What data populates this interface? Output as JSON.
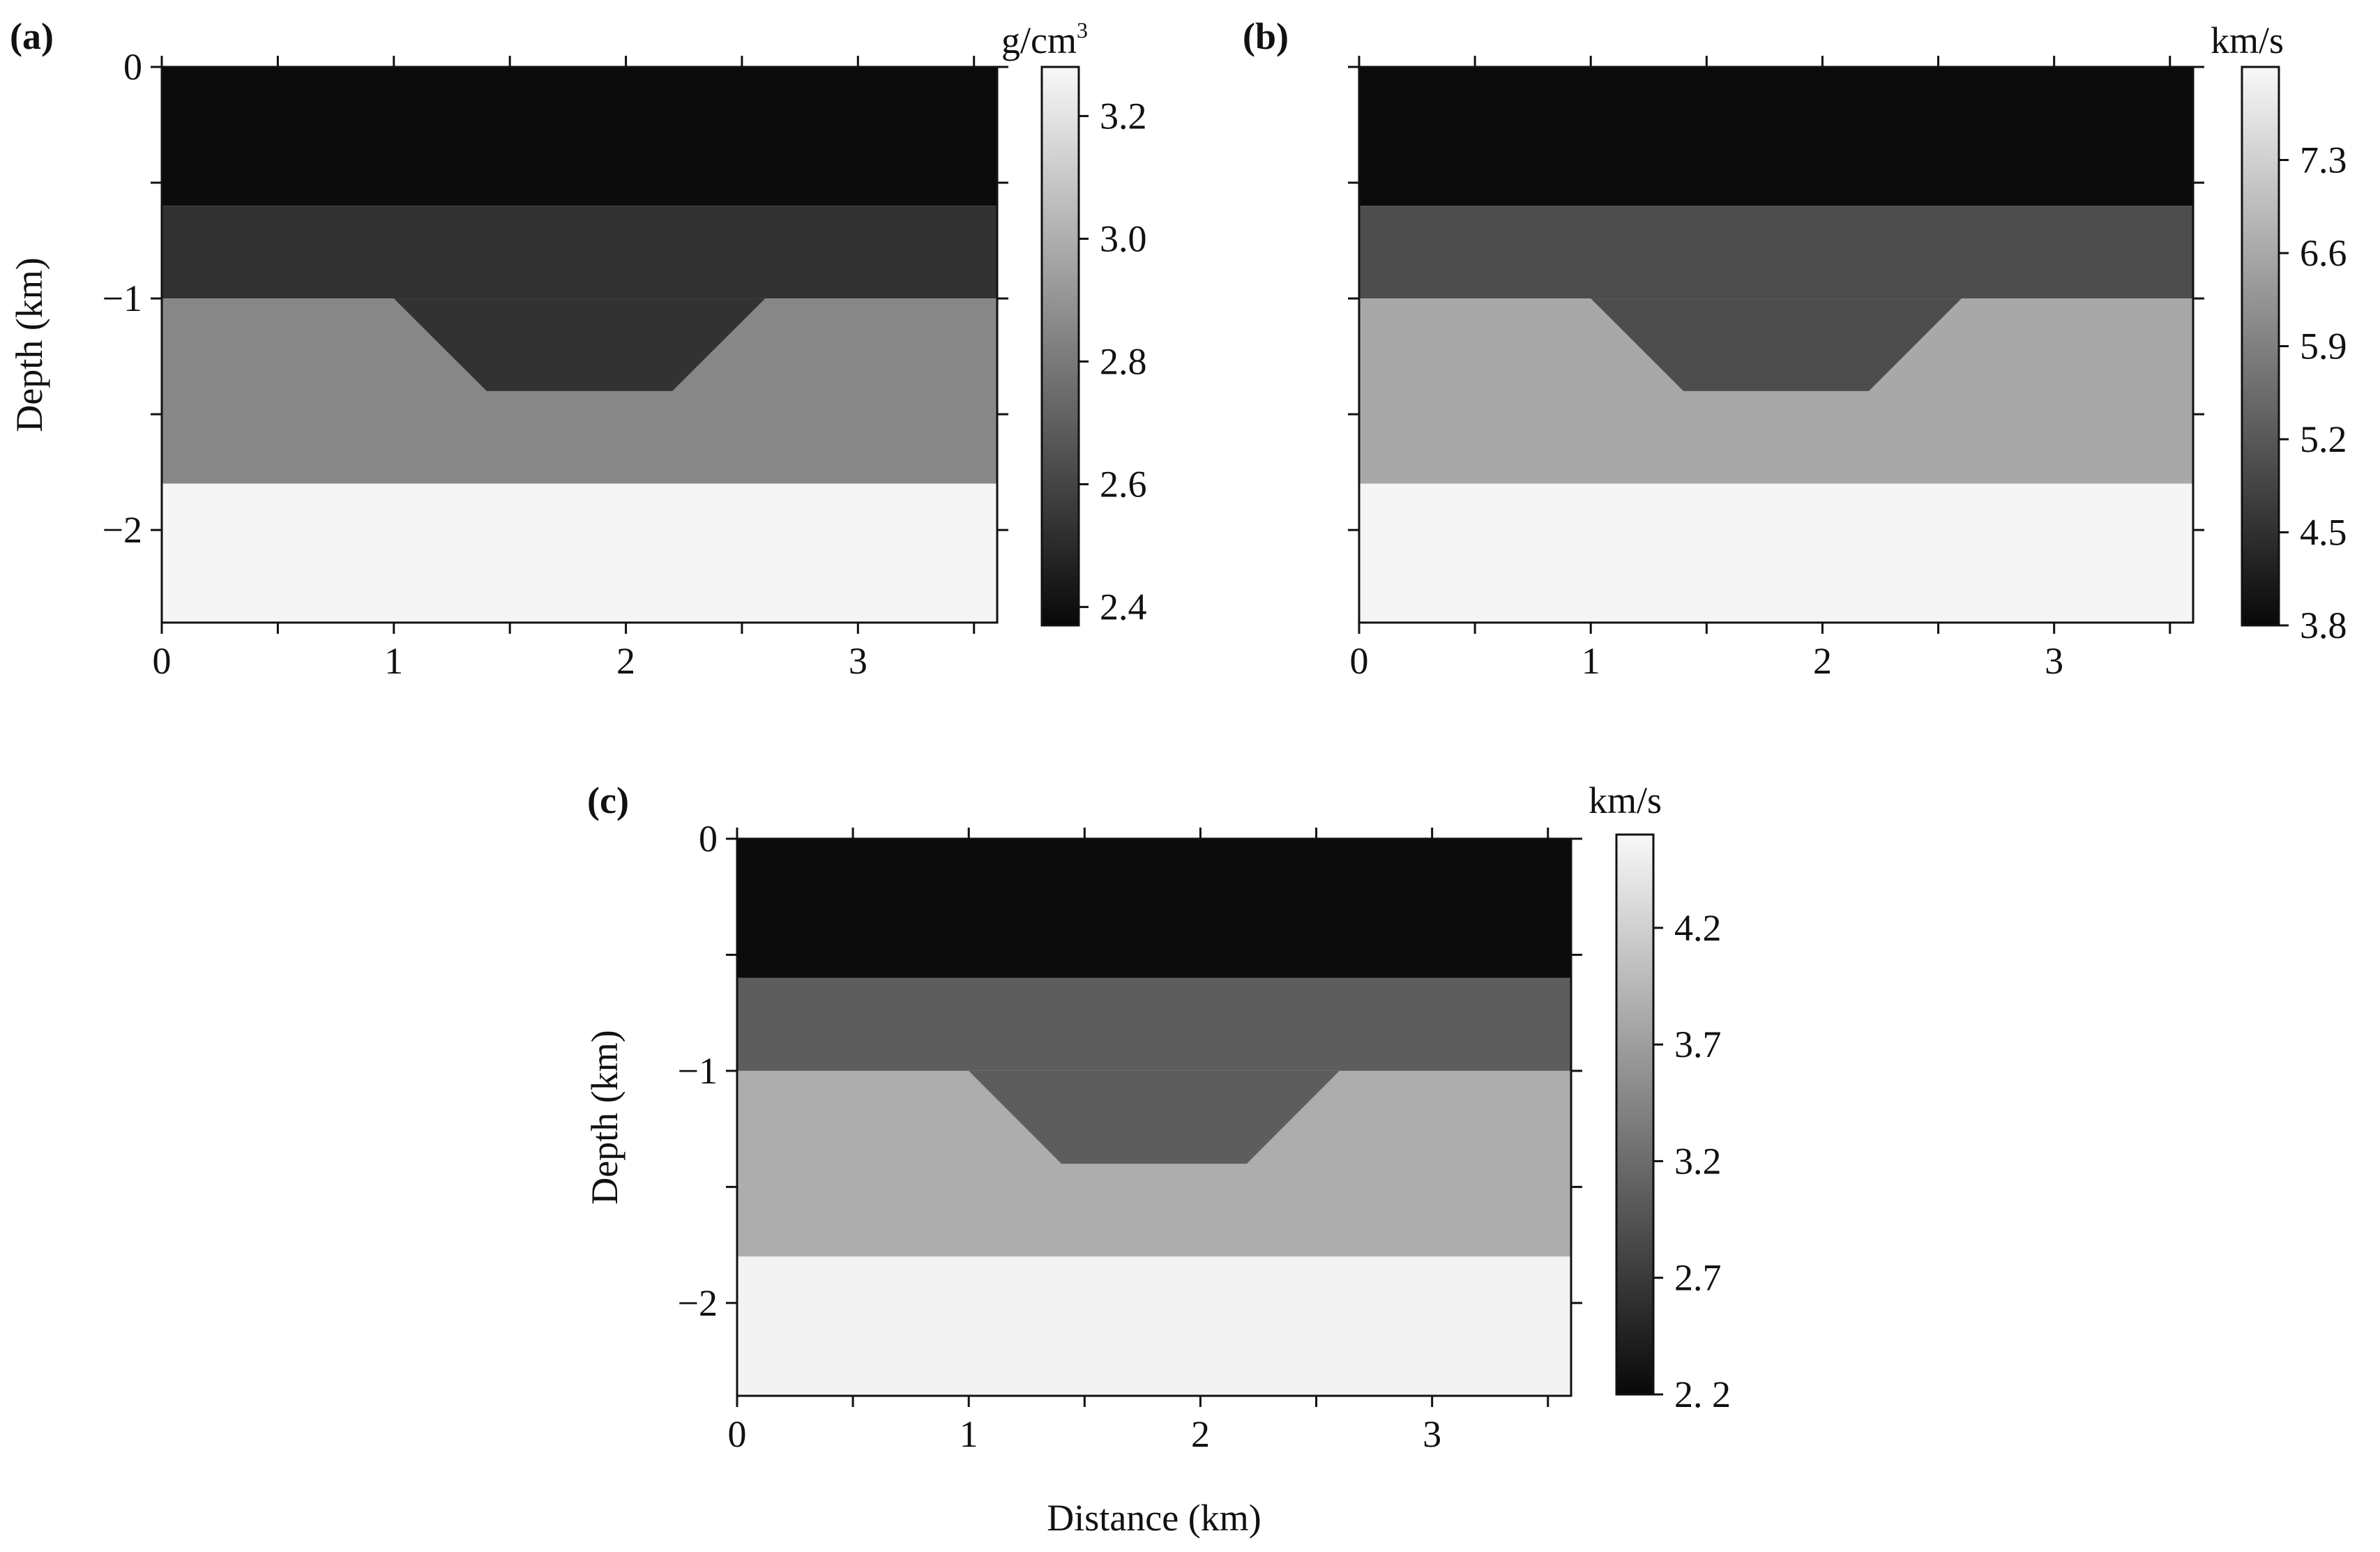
{
  "figure": {
    "panels": [
      "a",
      "b",
      "c"
    ]
  },
  "chart_data": [
    {
      "type": "heatmap",
      "panel_label": "(a)",
      "colorbar_unit": "g/cm",
      "colorbar_unit_superscript": "3",
      "ylabel": "Depth (km)",
      "xlabel": "",
      "xlim": [
        0,
        3.6
      ],
      "ylim": [
        -2.4,
        0
      ],
      "xticks": [
        0,
        1,
        2,
        3
      ],
      "xtick_labels": [
        "0",
        "1",
        "2",
        "3"
      ],
      "yticks": [
        0,
        -1,
        -2
      ],
      "ytick_labels": [
        "0",
        "−1",
        "−2"
      ],
      "colorbar_range": [
        2.37,
        3.28
      ],
      "colorbar_ticks": [
        2.4,
        2.6,
        2.8,
        3.0,
        3.2
      ],
      "colorbar_tick_labels": [
        "2.4",
        "2.6",
        "2.8",
        "3.0",
        "3.2"
      ],
      "layers": [
        {
          "name": "top layer",
          "top": 0,
          "bottom": -0.6,
          "value": 2.38
        },
        {
          "name": "second layer",
          "top": -0.6,
          "bottom": -1.0,
          "value": 2.53
        },
        {
          "name": "third layer",
          "top": -1.0,
          "bottom": -1.8,
          "value": 2.85
        },
        {
          "name": "bottom layer",
          "top": -1.8,
          "bottom": -2.4,
          "value": 3.27
        }
      ],
      "trough": {
        "top_x": [
          1.0,
          2.6
        ],
        "bottom_x": [
          1.4,
          2.2
        ],
        "top_y": -1.0,
        "bottom_y": -1.4,
        "value": 2.53
      }
    },
    {
      "type": "heatmap",
      "panel_label": "(b)",
      "colorbar_unit": "km/s",
      "colorbar_unit_superscript": "",
      "ylabel": "",
      "xlabel": "",
      "xlim": [
        0,
        3.6
      ],
      "ylim": [
        -2.4,
        0
      ],
      "xticks": [
        0,
        1,
        2,
        3
      ],
      "xtick_labels": [
        "0",
        "1",
        "2",
        "3"
      ],
      "yticks": [
        0,
        -1,
        -2
      ],
      "ytick_labels": [
        "",
        "",
        ""
      ],
      "colorbar_range": [
        3.8,
        8.0
      ],
      "colorbar_ticks": [
        3.8,
        4.5,
        5.2,
        5.9,
        6.6,
        7.3
      ],
      "colorbar_tick_labels": [
        "3.8",
        "4.5",
        "5.2",
        "5.9",
        "6.6",
        "7.3"
      ],
      "layers": [
        {
          "name": "top layer",
          "top": 0,
          "bottom": -0.6,
          "value": 3.85
        },
        {
          "name": "second layer",
          "top": -0.6,
          "bottom": -1.0,
          "value": 5.0
        },
        {
          "name": "third layer",
          "top": -1.0,
          "bottom": -1.8,
          "value": 6.6
        },
        {
          "name": "bottom layer",
          "top": -1.8,
          "bottom": -2.4,
          "value": 7.95
        }
      ],
      "trough": {
        "top_x": [
          1.0,
          2.6
        ],
        "bottom_x": [
          1.4,
          2.2
        ],
        "top_y": -1.0,
        "bottom_y": -1.4,
        "value": 5.0
      }
    },
    {
      "type": "heatmap",
      "panel_label": "(c)",
      "colorbar_unit": "km/s",
      "colorbar_unit_superscript": "",
      "ylabel": "Depth (km)",
      "xlabel": "Distance (km)",
      "xlim": [
        0,
        3.6
      ],
      "ylim": [
        -2.4,
        0
      ],
      "xticks": [
        0,
        1,
        2,
        3
      ],
      "xtick_labels": [
        "0",
        "1",
        "2",
        "3"
      ],
      "yticks": [
        0,
        -1,
        -2
      ],
      "ytick_labels": [
        "0",
        "−1",
        "−2"
      ],
      "colorbar_range": [
        2.2,
        4.6
      ],
      "colorbar_ticks": [
        2.2,
        2.7,
        3.2,
        3.7,
        4.2
      ],
      "colorbar_tick_labels": [
        "2. 2",
        "2.7",
        "3.2",
        "3.7",
        "4.2"
      ],
      "layers": [
        {
          "name": "top layer",
          "top": 0,
          "bottom": -0.6,
          "value": 2.23
        },
        {
          "name": "second layer",
          "top": -0.6,
          "bottom": -1.0,
          "value": 3.05
        },
        {
          "name": "third layer",
          "top": -1.0,
          "bottom": -1.8,
          "value": 3.85
        },
        {
          "name": "bottom layer",
          "top": -1.8,
          "bottom": -2.4,
          "value": 4.55
        }
      ],
      "trough": {
        "top_x": [
          1.0,
          2.6
        ],
        "bottom_x": [
          1.4,
          2.2
        ],
        "top_y": -1.0,
        "bottom_y": -1.4,
        "value": 3.05
      }
    }
  ]
}
